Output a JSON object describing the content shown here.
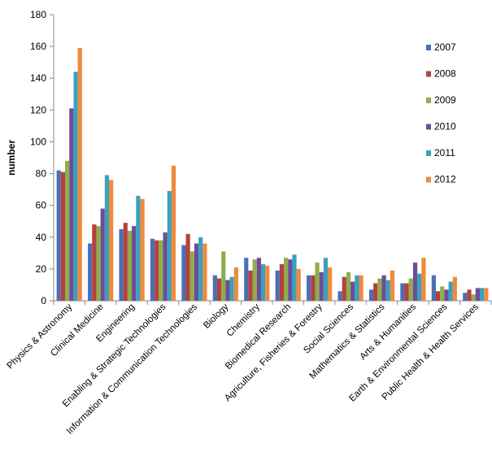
{
  "chart_data": {
    "type": "bar",
    "title": "",
    "xlabel": "",
    "ylabel": "number",
    "ylim": [
      0,
      180
    ],
    "yticks": [
      0,
      20,
      40,
      60,
      80,
      100,
      120,
      140,
      160,
      180
    ],
    "grid": false,
    "legend_position": "right",
    "categories": [
      "Physics & Astronomy",
      "Clinical Medicine",
      "Engineering",
      "Enabling & Strategic Technologies",
      "Information & Communication Technologies",
      "Biology",
      "Chemistry",
      "Biomedical Research",
      "Agriculture, Fisheries & Forestry",
      "Social Sciences",
      "Mathematics & Statistics",
      "Arts & Humanities",
      "Earth & Environmental Sciences",
      "Public Health & Health Services"
    ],
    "series": [
      {
        "name": "2007",
        "color": "#4a6fb5",
        "values": [
          82,
          36,
          45,
          39,
          35,
          16,
          27,
          19,
          16,
          6,
          7,
          11,
          16,
          5
        ]
      },
      {
        "name": "2008",
        "color": "#b5413e",
        "values": [
          81,
          48,
          49,
          38,
          42,
          14,
          19,
          23,
          16,
          15,
          11,
          11,
          6,
          7
        ]
      },
      {
        "name": "2009",
        "color": "#8fad4a",
        "values": [
          88,
          47,
          44,
          38,
          31,
          31,
          26,
          27,
          24,
          18,
          14,
          14,
          9,
          4
        ]
      },
      {
        "name": "2010",
        "color": "#6e4c97",
        "values": [
          121,
          58,
          47,
          43,
          36,
          13,
          27,
          26,
          18,
          12,
          16,
          24,
          7,
          8
        ]
      },
      {
        "name": "2011",
        "color": "#3aa1be",
        "values": [
          144,
          79,
          66,
          69,
          40,
          15,
          23,
          29,
          27,
          16,
          13,
          17,
          12,
          8
        ]
      },
      {
        "name": "2012",
        "color": "#f08a3c",
        "values": [
          159,
          76,
          64,
          85,
          36,
          21,
          22,
          20,
          21,
          16,
          19,
          27,
          15,
          8
        ]
      }
    ]
  }
}
